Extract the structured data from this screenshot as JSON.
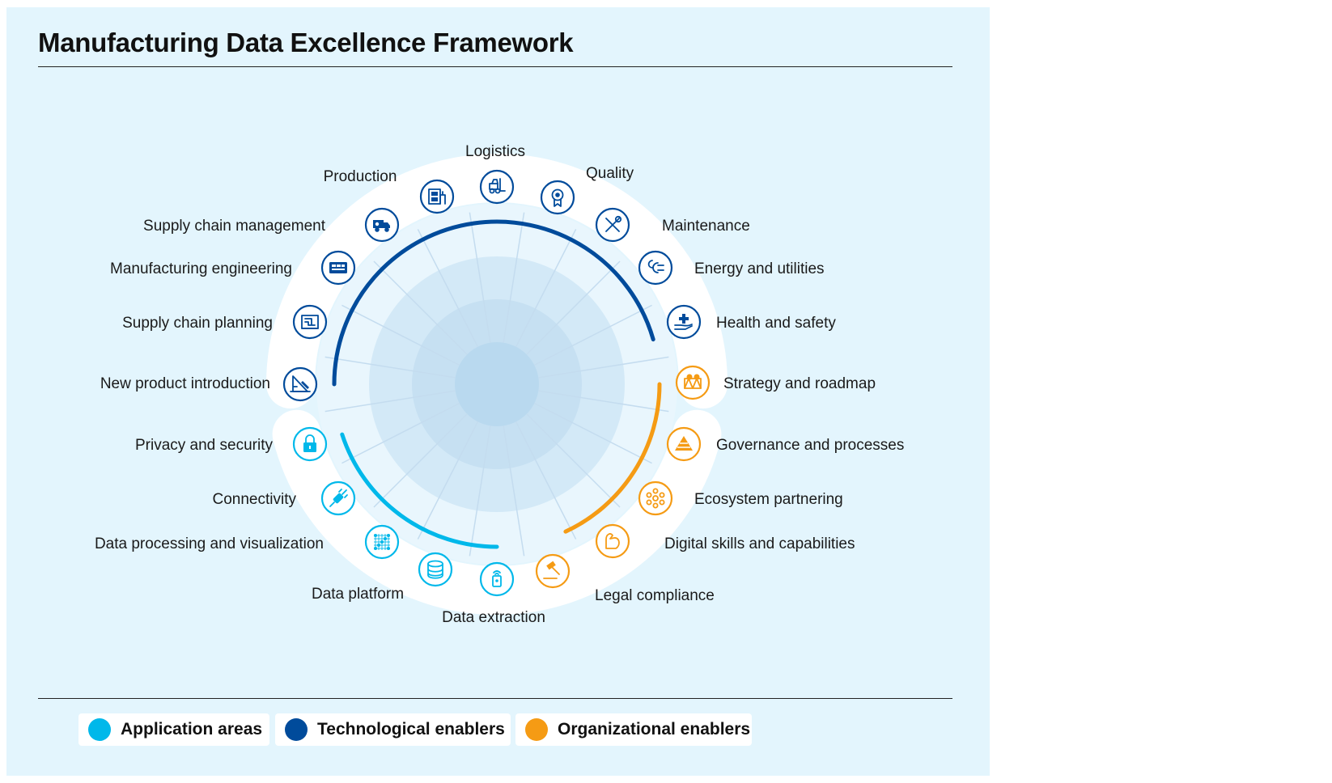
{
  "title": "Manufacturing Data Excellence Framework",
  "colors": {
    "application": "#00b8ea",
    "technological": "#004b9b",
    "organizational": "#f59b14",
    "panel": "#e3f5fd"
  },
  "legend": [
    {
      "label": "Application areas",
      "color": "#00b8ea"
    },
    {
      "label": "Technological enablers",
      "color": "#004b9b"
    },
    {
      "label": "Organizational enablers",
      "color": "#f59b14"
    }
  ],
  "nodes": [
    {
      "label": "Logistics",
      "group": "technological",
      "icon": "forklift-icon"
    },
    {
      "label": "Quality",
      "group": "technological",
      "icon": "award-ribbon-icon"
    },
    {
      "label": "Maintenance",
      "group": "technological",
      "icon": "wrench-screwdriver-icon"
    },
    {
      "label": "Energy and utilities",
      "group": "technological",
      "icon": "power-plug-icon"
    },
    {
      "label": "Health and safety",
      "group": "technological",
      "icon": "hand-medical-cross-icon"
    },
    {
      "label": "Strategy and roadmap",
      "group": "organizational",
      "icon": "roadmap-icon"
    },
    {
      "label": "Governance and processes",
      "group": "organizational",
      "icon": "pyramid-icon"
    },
    {
      "label": "Ecosystem partnering",
      "group": "organizational",
      "icon": "network-icon"
    },
    {
      "label": "Digital skills and capabilities",
      "group": "organizational",
      "icon": "flexed-arm-icon"
    },
    {
      "label": "Legal compliance",
      "group": "organizational",
      "icon": "gavel-icon"
    },
    {
      "label": "Data extraction",
      "group": "application",
      "icon": "sensor-device-icon"
    },
    {
      "label": "Data platform",
      "group": "application",
      "icon": "database-icon"
    },
    {
      "label": "Data processing and visualization",
      "group": "application",
      "icon": "binary-data-icon"
    },
    {
      "label": "Connectivity",
      "group": "application",
      "icon": "plug-connector-icon"
    },
    {
      "label": "Privacy and security",
      "group": "application",
      "icon": "padlock-icon"
    },
    {
      "label": "New product introduction",
      "group": "technological",
      "icon": "drafting-icon"
    },
    {
      "label": "Supply chain planning",
      "group": "technological",
      "icon": "planning-board-icon"
    },
    {
      "label": "Manufacturing engineering",
      "group": "technological",
      "icon": "control-panel-icon"
    },
    {
      "label": "Supply chain management",
      "group": "technological",
      "icon": "delivery-truck-icon"
    },
    {
      "label": "Production",
      "group": "technological",
      "icon": "factory-machine-icon"
    }
  ]
}
